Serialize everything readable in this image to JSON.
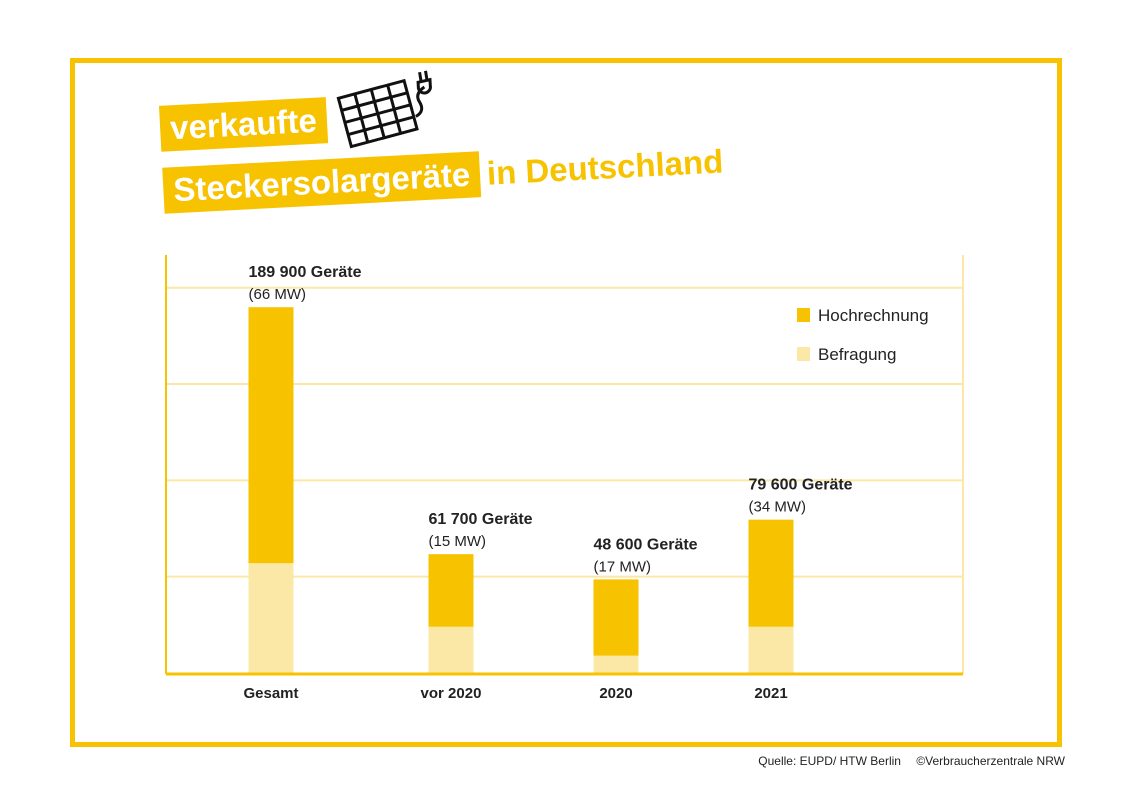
{
  "title": {
    "line1": "verkaufte",
    "line2": "Steckersolargeräte",
    "line3": "in Deutschland",
    "icon": "solar-panel-plug-icon"
  },
  "source": {
    "left": "Quelle: EUPD/ HTW Berlin",
    "right": "©Verbraucherzentrale NRW"
  },
  "colors": {
    "hochrechnung": "#f7c200",
    "befragung": "#fbe8a6",
    "frame": "#f7c200"
  },
  "chart_data": {
    "type": "bar",
    "stacked": true,
    "categories": [
      "Gesamt",
      "vor 2020",
      "2020",
      "2021"
    ],
    "series": [
      {
        "name": "Befragung",
        "values": [
          57000,
          24000,
          9000,
          24000
        ]
      },
      {
        "name": "Hochrechnung",
        "values": [
          132900,
          37700,
          39600,
          55600
        ]
      }
    ],
    "data_labels": [
      {
        "total": "189 900 Geräte",
        "power": "(66 MW)"
      },
      {
        "total": "61 700 Geräte",
        "power": "(15 MW)"
      },
      {
        "total": "48 600 Geräte",
        "power": "(17 MW)"
      },
      {
        "total": "79 600 Geräte",
        "power": "(34 MW)"
      }
    ],
    "legend": [
      "Hochrechnung",
      "Befragung"
    ],
    "legend_position": "top-right",
    "ylim": [
      0,
      217000
    ],
    "grid_step": 50000,
    "grid": true,
    "y_tick_labels": false
  }
}
